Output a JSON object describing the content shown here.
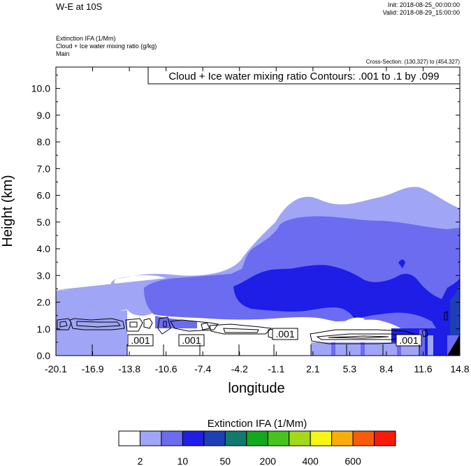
{
  "header": {
    "title": "W-E at 10S",
    "init": "Init: 2018-08-25_00:00:00",
    "valid": "Valid: 2018-08-29_15:00:00",
    "field1": "Extinction IFA   (1/Mm)",
    "field2": "Cloud + Ice water mixing ratio   (g/kg)",
    "field3": "Main",
    "cross_section": "Cross-Section: (130,327) to (454,327)"
  },
  "chart_data": {
    "type": "contour",
    "xlabel": "longitude",
    "ylabel": "Height (km)",
    "xlim": [
      -20.1,
      14.8
    ],
    "ylim": [
      0.0,
      10.8
    ],
    "x_ticks": [
      "-20.1",
      "-16.9",
      "-13.8",
      "-10.6",
      "-7.4",
      "-4.2",
      "-1.1",
      "2.1",
      "5.3",
      "8.4",
      "11.6",
      "14.8"
    ],
    "y_ticks": [
      "0.0",
      "1.0",
      "2.0",
      "3.0",
      "4.0",
      "5.0",
      "6.0",
      "7.0",
      "8.0",
      "9.0",
      "10.0"
    ],
    "contour_info": "Cloud + Ice water mixing ratio Contours: .001 to .1 by .099",
    "contour_labels": [
      ".001",
      ".001",
      ".001",
      ".001"
    ],
    "colorbar": {
      "title": "Extinction IFA  (1/Mm)",
      "colors": [
        "#ffffff",
        "#a0a5f5",
        "#6b6cf0",
        "#1e1ee6",
        "#1f3fb5",
        "#127a6d",
        "#14a81c",
        "#45c41b",
        "#a4d919",
        "#f7f513",
        "#f9ad0b",
        "#f85c0a",
        "#f91a0a"
      ],
      "labels": [
        "2",
        "10",
        "50",
        "200",
        "400",
        "600"
      ]
    },
    "fill_colors": {
      "light": "#a0a5f5",
      "medium": "#6b6cf0",
      "dark": "#1e1ee6",
      "navy": "#1f3fb5",
      "terrain": "#000000"
    }
  }
}
